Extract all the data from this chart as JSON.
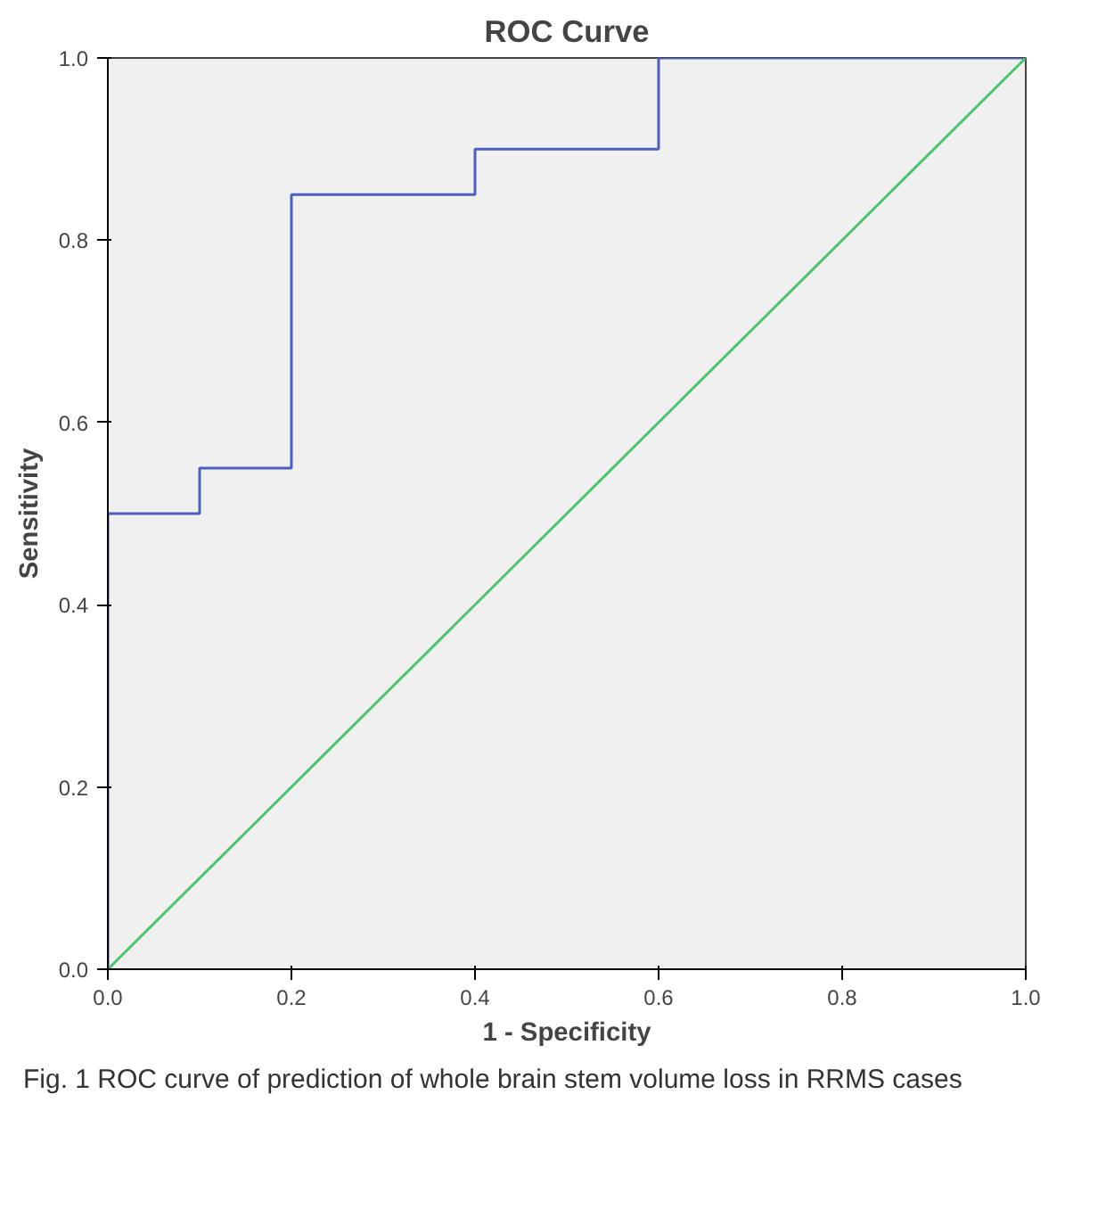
{
  "chart_data": {
    "type": "line",
    "title": "ROC Curve",
    "xlabel": "1 - Specificity",
    "ylabel": "Sensitivity",
    "xlim": [
      0,
      1
    ],
    "ylim": [
      0,
      1
    ],
    "xticks": [
      {
        "value": 0,
        "label": "0.0"
      },
      {
        "value": 0.2,
        "label": "0.2"
      },
      {
        "value": 0.4,
        "label": "0.4"
      },
      {
        "value": 0.6,
        "label": "0.6"
      },
      {
        "value": 0.8,
        "label": "0.8"
      },
      {
        "value": 1,
        "label": "1.0"
      }
    ],
    "yticks": [
      {
        "value": 0,
        "label": "0.0"
      },
      {
        "value": 0.2,
        "label": "0.2"
      },
      {
        "value": 0.4,
        "label": "0.4"
      },
      {
        "value": 0.6,
        "label": "0.6"
      },
      {
        "value": 0.8,
        "label": "0.8"
      },
      {
        "value": 1,
        "label": "1.0"
      }
    ],
    "series": [
      {
        "type": "step",
        "color": "#4a5fbf",
        "x": [
          0,
          0,
          0.1,
          0.2,
          0.4,
          0.6,
          1.0
        ],
        "values": [
          0,
          0.5,
          0.55,
          0.85,
          0.9,
          1.0,
          1.0
        ]
      },
      {
        "color": "#4cc46c",
        "x": [
          0,
          1
        ],
        "values": [
          0,
          1
        ]
      }
    ],
    "grid": false,
    "annotations": [
      "Fig. 1 ROC curve of prediction of whole brain stem volume loss in RRMS cases"
    ]
  }
}
